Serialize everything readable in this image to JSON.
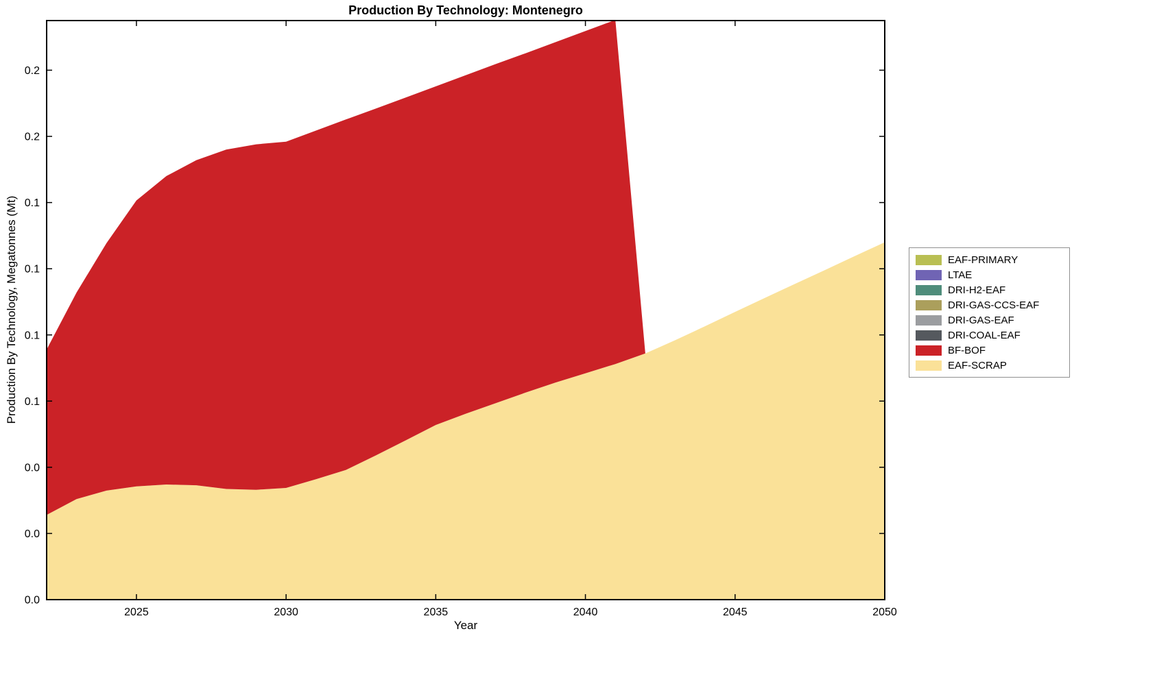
{
  "chart_data": {
    "type": "area",
    "stacked": true,
    "title": "Production By Technology: Montenegro",
    "xlabel": "Year",
    "ylabel": "Production By Technology, Megatonnes (Mt)",
    "grid": false,
    "legend_position": "right-outside",
    "axis_color": "#000000",
    "xlim": [
      2022,
      2050
    ],
    "ylim": [
      0,
      0.21875
    ],
    "x": [
      2022,
      2023,
      2024,
      2025,
      2026,
      2027,
      2028,
      2029,
      2030,
      2031,
      2032,
      2033,
      2034,
      2035,
      2036,
      2037,
      2038,
      2039,
      2040,
      2041,
      2042,
      2043,
      2044,
      2045,
      2046,
      2047,
      2048,
      2049,
      2050
    ],
    "x_ticks": [
      {
        "value": 2025,
        "label": "2025"
      },
      {
        "value": 2030,
        "label": "2030"
      },
      {
        "value": 2035,
        "label": "2035"
      },
      {
        "value": 2040,
        "label": "2040"
      },
      {
        "value": 2045,
        "label": "2045"
      },
      {
        "value": 2050,
        "label": "2050"
      }
    ],
    "y_ticks": [
      {
        "value": 0.0,
        "label": "0.0"
      },
      {
        "value": 0.025,
        "label": "0.0"
      },
      {
        "value": 0.05,
        "label": "0.0"
      },
      {
        "value": 0.075,
        "label": "0.1"
      },
      {
        "value": 0.1,
        "label": "0.1"
      },
      {
        "value": 0.125,
        "label": "0.1"
      },
      {
        "value": 0.15,
        "label": "0.1"
      },
      {
        "value": 0.175,
        "label": "0.2"
      },
      {
        "value": 0.2,
        "label": "0.2"
      }
    ],
    "series": [
      {
        "name": "EAF-PRIMARY",
        "color": "#b9bf53",
        "values": [
          0,
          0,
          0,
          0,
          0,
          0,
          0,
          0,
          0,
          0,
          0,
          0,
          0,
          0,
          0,
          0,
          0,
          0,
          0,
          0,
          0,
          0,
          0,
          0,
          0,
          0,
          0,
          0,
          0
        ]
      },
      {
        "name": "LTAE",
        "color": "#7064b4",
        "values": [
          0,
          0,
          0,
          0,
          0,
          0,
          0,
          0,
          0,
          0,
          0,
          0,
          0,
          0,
          0,
          0,
          0,
          0,
          0,
          0,
          0,
          0,
          0,
          0,
          0,
          0,
          0,
          0,
          0
        ]
      },
      {
        "name": "DRI-H2-EAF",
        "color": "#4f8d7b",
        "values": [
          0,
          0,
          0,
          0,
          0,
          0,
          0,
          0,
          0,
          0,
          0,
          0,
          0,
          0,
          0,
          0,
          0,
          0,
          0,
          0,
          0,
          0,
          0,
          0,
          0,
          0,
          0,
          0,
          0
        ]
      },
      {
        "name": "DRI-GAS-CCS-EAF",
        "color": "#ab9f5c",
        "values": [
          0,
          0,
          0,
          0,
          0,
          0,
          0,
          0,
          0,
          0,
          0,
          0,
          0,
          0,
          0,
          0,
          0,
          0,
          0,
          0,
          0,
          0,
          0,
          0,
          0,
          0,
          0,
          0,
          0
        ]
      },
      {
        "name": "DRI-GAS-EAF",
        "color": "#9b9da0",
        "values": [
          0,
          0,
          0,
          0,
          0,
          0,
          0,
          0,
          0,
          0,
          0,
          0,
          0,
          0,
          0,
          0,
          0,
          0,
          0,
          0,
          0,
          0,
          0,
          0,
          0,
          0,
          0,
          0,
          0
        ]
      },
      {
        "name": "DRI-COAL-EAF",
        "color": "#55595e",
        "values": [
          0,
          0,
          0,
          0,
          0,
          0,
          0,
          0,
          0,
          0,
          0,
          0,
          0,
          0,
          0,
          0,
          0,
          0,
          0,
          0,
          0,
          0,
          0,
          0,
          0,
          0,
          0,
          0,
          0
        ]
      },
      {
        "name": "BF-BOF",
        "color": "#cb2227",
        "values": [
          0.0625,
          0.078,
          0.0935,
          0.108,
          0.1165,
          0.1228,
          0.1282,
          0.1305,
          0.1308,
          0.1317,
          0.1324,
          0.131,
          0.1295,
          0.1279,
          0.1279,
          0.1281,
          0.1282,
          0.1286,
          0.1293,
          0.13,
          0,
          0,
          0,
          0,
          0,
          0,
          0,
          0,
          0
        ]
      },
      {
        "name": "EAF-SCRAP",
        "color": "#fae198",
        "values": [
          0.032,
          0.038,
          0.0412,
          0.0428,
          0.0435,
          0.0432,
          0.0418,
          0.0415,
          0.0422,
          0.0455,
          0.049,
          0.0545,
          0.0602,
          0.066,
          0.0702,
          0.0742,
          0.0782,
          0.082,
          0.0855,
          0.089,
          0.093,
          0.098,
          0.1033,
          0.1087,
          0.114,
          0.1193,
          0.1245,
          0.1298,
          0.135
        ]
      }
    ]
  }
}
